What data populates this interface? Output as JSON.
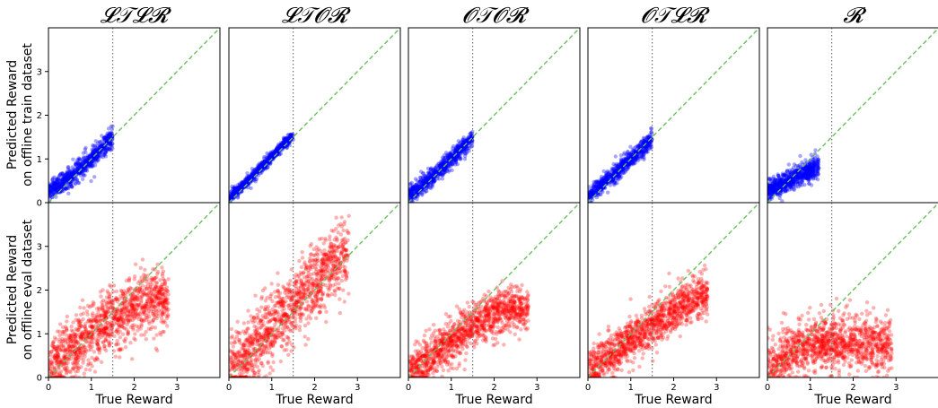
{
  "figure": {
    "x_axis_title": "True Reward",
    "row_labels": [
      [
        "Predicted Reward",
        "on offline train dataset"
      ],
      [
        "Predicted Reward",
        "on offline eval dataset"
      ]
    ],
    "column_titles": [
      "𝓛𝒯𝓛𝓡",
      "𝓛𝒯𝓞𝓡",
      "𝓞𝒯𝓞𝓡",
      "𝓞𝒯𝓛𝓡",
      "𝓡"
    ]
  },
  "chart_data": {
    "type": "scatter",
    "layout": "2 rows x 5 columns, shared axes",
    "xlim": [
      0,
      4
    ],
    "ylim": [
      0,
      4
    ],
    "x_ticks": [
      0,
      1,
      2,
      3
    ],
    "y_ticks": [
      0,
      1,
      2,
      3
    ],
    "x_tick_labels": [
      "0",
      "1",
      "2",
      "3"
    ],
    "y_tick_labels": [
      "0",
      "1",
      "2",
      "3"
    ],
    "reference_lines": [
      {
        "type": "diagonal y=x",
        "style": "dashed",
        "color": "#6abf5e"
      },
      {
        "type": "vertical",
        "x": 1.5,
        "style": "dotted",
        "color": "#777777"
      }
    ],
    "colors": {
      "train": "#0000ff",
      "eval": "#ff0000"
    },
    "panels": [
      {
        "column": "𝓛𝒯𝓛𝓡",
        "row": "train",
        "x_range": [
          0,
          1.5
        ],
        "pred": {
          "0": 0.25,
          "0.5": 0.6,
          "1": 1.0,
          "1.5": 1.5
        },
        "spread": 0.12
      },
      {
        "column": "𝓛𝒯𝓞𝓡",
        "row": "train",
        "x_range": [
          0,
          1.5
        ],
        "pred": {
          "0": 0.1,
          "0.5": 0.55,
          "1": 1.05,
          "1.5": 1.55
        },
        "spread": 0.06
      },
      {
        "column": "𝓞𝒯𝓞𝓡",
        "row": "train",
        "x_range": [
          0,
          1.5
        ],
        "pred": {
          "0": 0.15,
          "0.5": 0.55,
          "1": 1.0,
          "1.5": 1.5
        },
        "spread": 0.1
      },
      {
        "column": "𝓞𝒯𝓛𝓡",
        "row": "train",
        "x_range": [
          0,
          1.5
        ],
        "pred": {
          "0": 0.15,
          "0.5": 0.55,
          "1": 1.0,
          "1.5": 1.45
        },
        "spread": 0.1
      },
      {
        "column": "𝓡",
        "row": "train",
        "x_range": [
          0,
          1.2
        ],
        "pred": {
          "0": 0.25,
          "0.5": 0.5,
          "1": 0.75,
          "1.2": 0.85
        },
        "spread": 0.12
      },
      {
        "column": "𝓛𝒯𝓛𝓡",
        "row": "eval",
        "x_range": [
          0,
          2.8
        ],
        "pred": {
          "0": 0.2,
          "0.5": 0.6,
          "1": 1.0,
          "1.5": 1.35,
          "2": 1.6,
          "2.5": 1.75,
          "2.8": 1.75
        },
        "spread": 0.35
      },
      {
        "column": "𝓛𝒯𝓞𝓡",
        "row": "eval",
        "x_range": [
          0,
          2.8
        ],
        "pred": {
          "0": 0.05,
          "0.5": 0.55,
          "1": 1.15,
          "1.5": 1.7,
          "2": 2.2,
          "2.5": 2.6,
          "2.8": 2.8
        },
        "spread": 0.4
      },
      {
        "column": "𝓞𝒯𝓞𝓡",
        "row": "eval",
        "x_range": [
          0,
          2.8
        ],
        "pred": {
          "0": 0.1,
          "0.5": 0.45,
          "1": 0.85,
          "1.5": 1.2,
          "2": 1.45,
          "2.5": 1.6,
          "2.8": 1.6
        },
        "spread": 0.25
      },
      {
        "column": "𝓞𝒯𝓛𝓡",
        "row": "eval",
        "x_range": [
          0,
          2.8
        ],
        "pred": {
          "0": 0.15,
          "0.5": 0.5,
          "1": 0.85,
          "1.5": 1.2,
          "2": 1.5,
          "2.5": 1.8,
          "2.8": 1.9
        },
        "spread": 0.25
      },
      {
        "column": "𝓡",
        "row": "eval",
        "x_range": [
          0,
          2.9
        ],
        "pred": {
          "0": 0.3,
          "0.5": 0.55,
          "1": 0.75,
          "1.5": 0.8,
          "2": 0.8,
          "2.5": 0.75,
          "2.9": 0.7
        },
        "spread": 0.3
      }
    ]
  }
}
